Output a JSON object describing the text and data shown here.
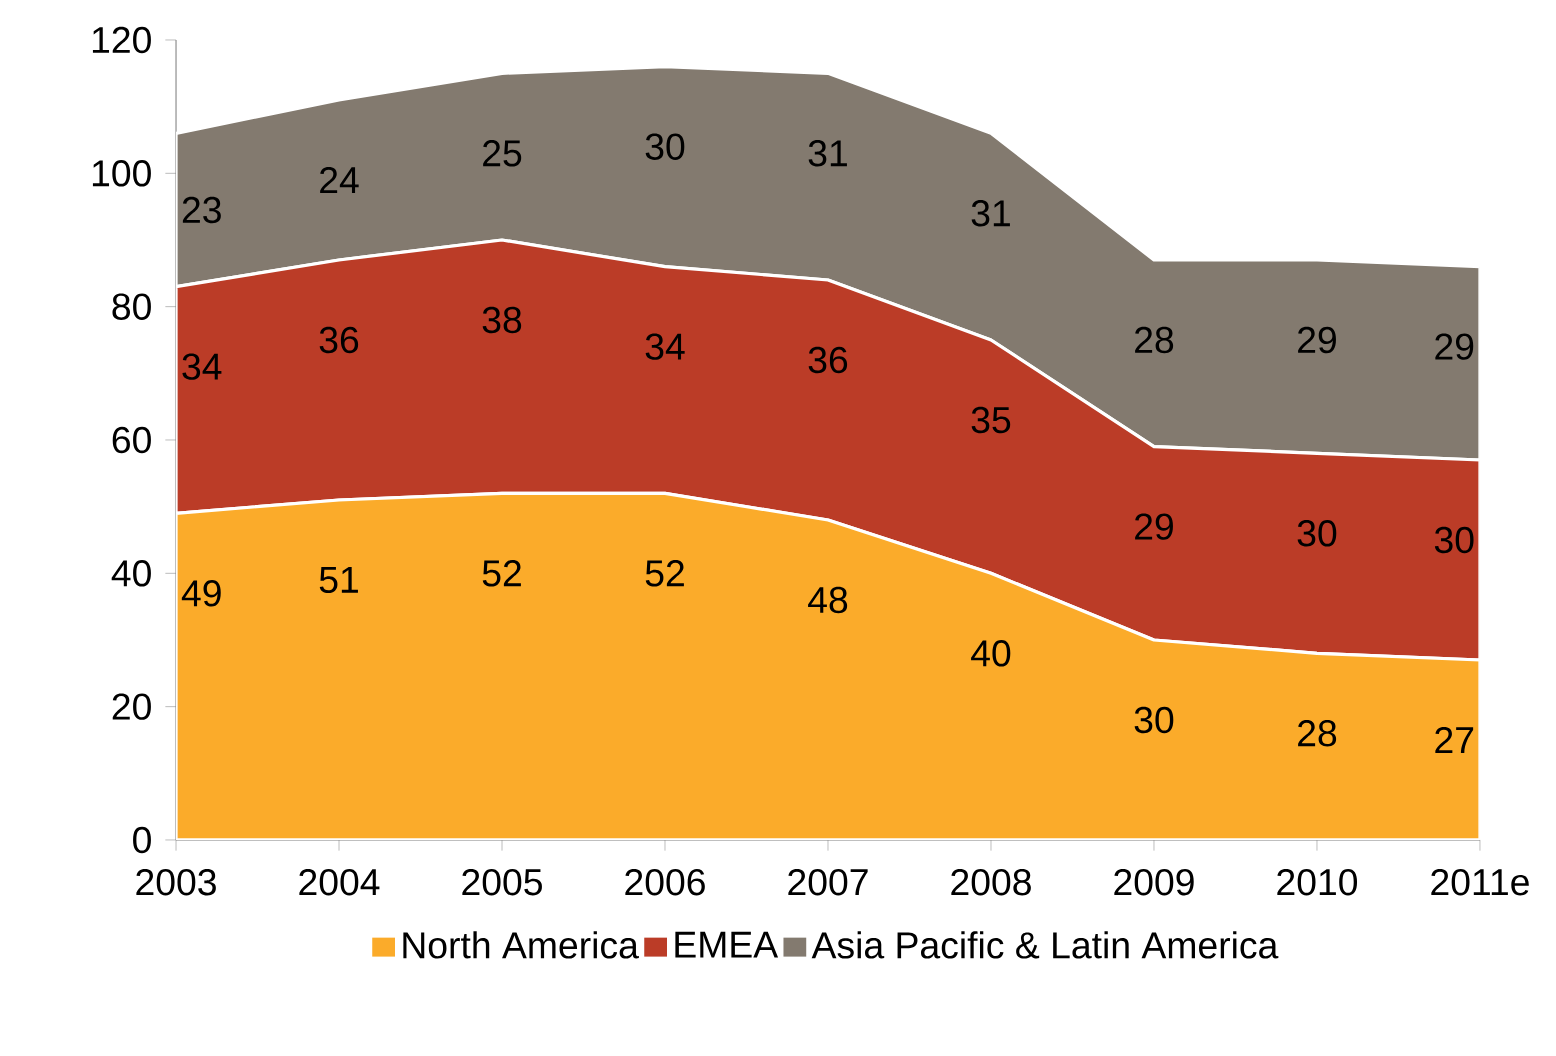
{
  "chart_data": {
    "type": "area",
    "stacked": true,
    "categories": [
      "2003",
      "2004",
      "2005",
      "2006",
      "2007",
      "2008",
      "2009",
      "2010",
      "2011e"
    ],
    "series": [
      {
        "name": "North America",
        "color": "#fbab2a",
        "values": [
          49,
          51,
          52,
          52,
          48,
          40,
          30,
          28,
          27
        ]
      },
      {
        "name": "EMEA",
        "color": "#bb3c27",
        "values": [
          34,
          36,
          38,
          34,
          36,
          35,
          29,
          30,
          30
        ]
      },
      {
        "name": "Asia Pacific & Latin America",
        "color": "#837a6f",
        "values": [
          23,
          24,
          25,
          30,
          31,
          31,
          28,
          29,
          29
        ]
      }
    ],
    "ylim": [
      0,
      120
    ],
    "yticks": [
      0,
      20,
      40,
      60,
      80,
      100,
      120
    ],
    "data_labels": true,
    "legend": "bottom"
  }
}
